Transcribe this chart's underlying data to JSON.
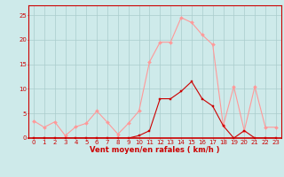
{
  "x": [
    0,
    1,
    2,
    3,
    4,
    5,
    6,
    7,
    8,
    9,
    10,
    11,
    12,
    13,
    14,
    15,
    16,
    17,
    18,
    19,
    20,
    21,
    22,
    23
  ],
  "y_rafales": [
    3.5,
    2.2,
    3.3,
    0.5,
    2.3,
    3.0,
    5.5,
    3.2,
    0.8,
    3.0,
    5.5,
    15.5,
    19.5,
    19.5,
    24.5,
    23.5,
    21.0,
    19.0,
    2.5,
    10.5,
    1.5,
    10.5,
    2.2,
    2.2
  ],
  "y_moyen": [
    0,
    0,
    0,
    0,
    0,
    0,
    0,
    0,
    0,
    0,
    0.5,
    1.5,
    8.0,
    8.0,
    9.5,
    11.5,
    8.0,
    6.5,
    2.5,
    0,
    1.5,
    0,
    0,
    0
  ],
  "bg_color": "#ceeaea",
  "line_color_rafales": "#ff9999",
  "line_color_moyen": "#cc0000",
  "marker_color_rafales": "#ff9999",
  "marker_color_moyen": "#cc0000",
  "xlabel": "Vent moyen/en rafales ( km/h )",
  "ylim": [
    0,
    27
  ],
  "xlim": [
    -0.5,
    23.5
  ],
  "yticks": [
    0,
    5,
    10,
    15,
    20,
    25
  ],
  "xticks": [
    0,
    1,
    2,
    3,
    4,
    5,
    6,
    7,
    8,
    9,
    10,
    11,
    12,
    13,
    14,
    15,
    16,
    17,
    18,
    19,
    20,
    21,
    22,
    23
  ],
  "grid_color": "#aacccc",
  "xlabel_color": "#cc0000",
  "tick_color": "#cc0000",
  "spine_color": "#cc0000",
  "tick_fontsize": 5.0,
  "xlabel_fontsize": 6.0
}
